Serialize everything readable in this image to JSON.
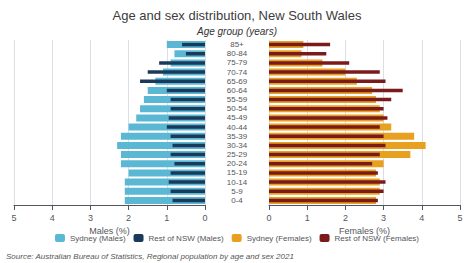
{
  "chart_data": [
    {
      "type": "bar",
      "orientation": "horizontal",
      "title": "Age and sex distribution, New South Wales",
      "ylabel": "Age group (years)",
      "xlabel": "Males (%)",
      "annotations": [
        "Source: Australian Bureau of Statistics, Regional population by age and sex 2021"
      ],
      "categories": [
        "0-4",
        "5-9",
        "10-14",
        "15-19",
        "20-24",
        "25-29",
        "30-34",
        "35-39",
        "40-44",
        "45-49",
        "50-54",
        "55-59",
        "60-64",
        "65-69",
        "70-74",
        "75-79",
        "80-84",
        "85+"
      ],
      "series": [
        {
          "name": "Sydney (Males)",
          "color": "#5BB8D4",
          "values": [
            2.1,
            2.1,
            2.1,
            2.0,
            2.2,
            2.2,
            2.3,
            2.2,
            2.0,
            1.8,
            1.7,
            1.6,
            1.5,
            1.3,
            1.1,
            0.9,
            0.8,
            1.0
          ]
        },
        {
          "name": "Rest of NSW (Males)",
          "color": "#1A3A5C",
          "values": [
            0.85,
            0.9,
            0.95,
            0.9,
            0.8,
            0.9,
            0.85,
            0.9,
            1.0,
            0.95,
            0.9,
            0.9,
            1.0,
            1.7,
            1.5,
            1.2,
            0.5,
            0.6
          ]
        }
      ],
      "xlim": [
        5,
        0
      ],
      "xticks": [
        0,
        1,
        2,
        3,
        4,
        5
      ],
      "grid": true,
      "legend": "bottom"
    },
    {
      "type": "bar",
      "orientation": "horizontal",
      "xlabel": "Females (%)",
      "categories": [
        "0-4",
        "5-9",
        "10-14",
        "15-19",
        "20-24",
        "25-29",
        "30-34",
        "35-39",
        "40-44",
        "45-49",
        "50-54",
        "55-59",
        "60-64",
        "65-69",
        "70-74",
        "75-79",
        "80-84",
        "85+"
      ],
      "series": [
        {
          "name": "Sydney (Females)",
          "color": "#E8A020",
          "values": [
            2.8,
            2.9,
            2.9,
            2.8,
            3.0,
            3.7,
            4.1,
            3.8,
            3.2,
            3.0,
            2.9,
            2.8,
            2.7,
            2.3,
            2.0,
            1.4,
            0.85,
            0.9
          ]
        },
        {
          "name": "Rest of NSW (Females)",
          "color": "#7B1A1A",
          "values": [
            2.85,
            3.0,
            3.05,
            2.85,
            2.7,
            2.9,
            3.05,
            3.0,
            2.9,
            3.1,
            3.0,
            3.2,
            3.5,
            3.05,
            2.9,
            2.1,
            1.5,
            1.6
          ]
        }
      ],
      "xlim": [
        0,
        5
      ],
      "xticks": [
        0,
        1,
        2,
        3,
        4,
        5
      ],
      "grid": true,
      "tick_labels": "x"
    }
  ]
}
